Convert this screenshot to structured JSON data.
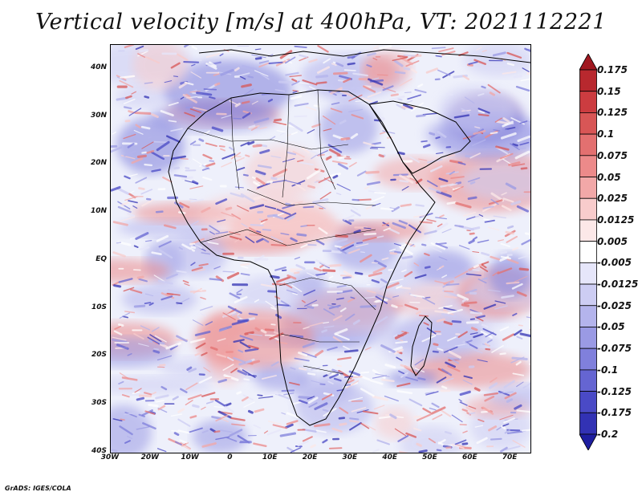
{
  "title": "Vertical velocity [m/s] at 400hPa, VT: 2021112221",
  "credit": "GrADS: IGES/COLA",
  "map": {
    "lon_range": [
      -30,
      75
    ],
    "lat_range": [
      -40,
      45
    ],
    "lat_labels": [
      "40N",
      "30N",
      "20N",
      "10N",
      "EQ",
      "10S",
      "20S",
      "30S",
      "40S"
    ],
    "lat_values": [
      40,
      30,
      20,
      10,
      0,
      -10,
      -20,
      -30,
      -40
    ],
    "lon_labels": [
      "30W",
      "20W",
      "10W",
      "0",
      "10E",
      "20E",
      "30E",
      "40E",
      "50E",
      "60E",
      "70E"
    ],
    "lon_values": [
      -30,
      -20,
      -10,
      0,
      10,
      20,
      30,
      40,
      50,
      60,
      70
    ],
    "features": [
      "coastlines",
      "country-borders"
    ]
  },
  "colorbar": {
    "labels": [
      "0.175",
      "0.15",
      "0.125",
      "0.1",
      "0.075",
      "0.05",
      "0.025",
      "0.0125",
      "0.005",
      "-0.005",
      "-0.0125",
      "-0.025",
      "-0.05",
      "-0.075",
      "-0.1",
      "-0.125",
      "-0.175",
      "-0.2"
    ],
    "colors": [
      "#a01820",
      "#b8282e",
      "#cc3c40",
      "#d85656",
      "#e37070",
      "#ec8a8a",
      "#f2a8a8",
      "#f8cccc",
      "#fce8e8",
      "#ffffff",
      "#e6e6fa",
      "#cdcdf3",
      "#b4b4ec",
      "#9a9ae4",
      "#8080dc",
      "#6565d2",
      "#4a4ac6",
      "#3232b4",
      "#1e1ea0"
    ]
  },
  "colors": {
    "upward": "#cc3c40",
    "downward": "#4a4ac6",
    "background_field": "#eef0fb"
  }
}
